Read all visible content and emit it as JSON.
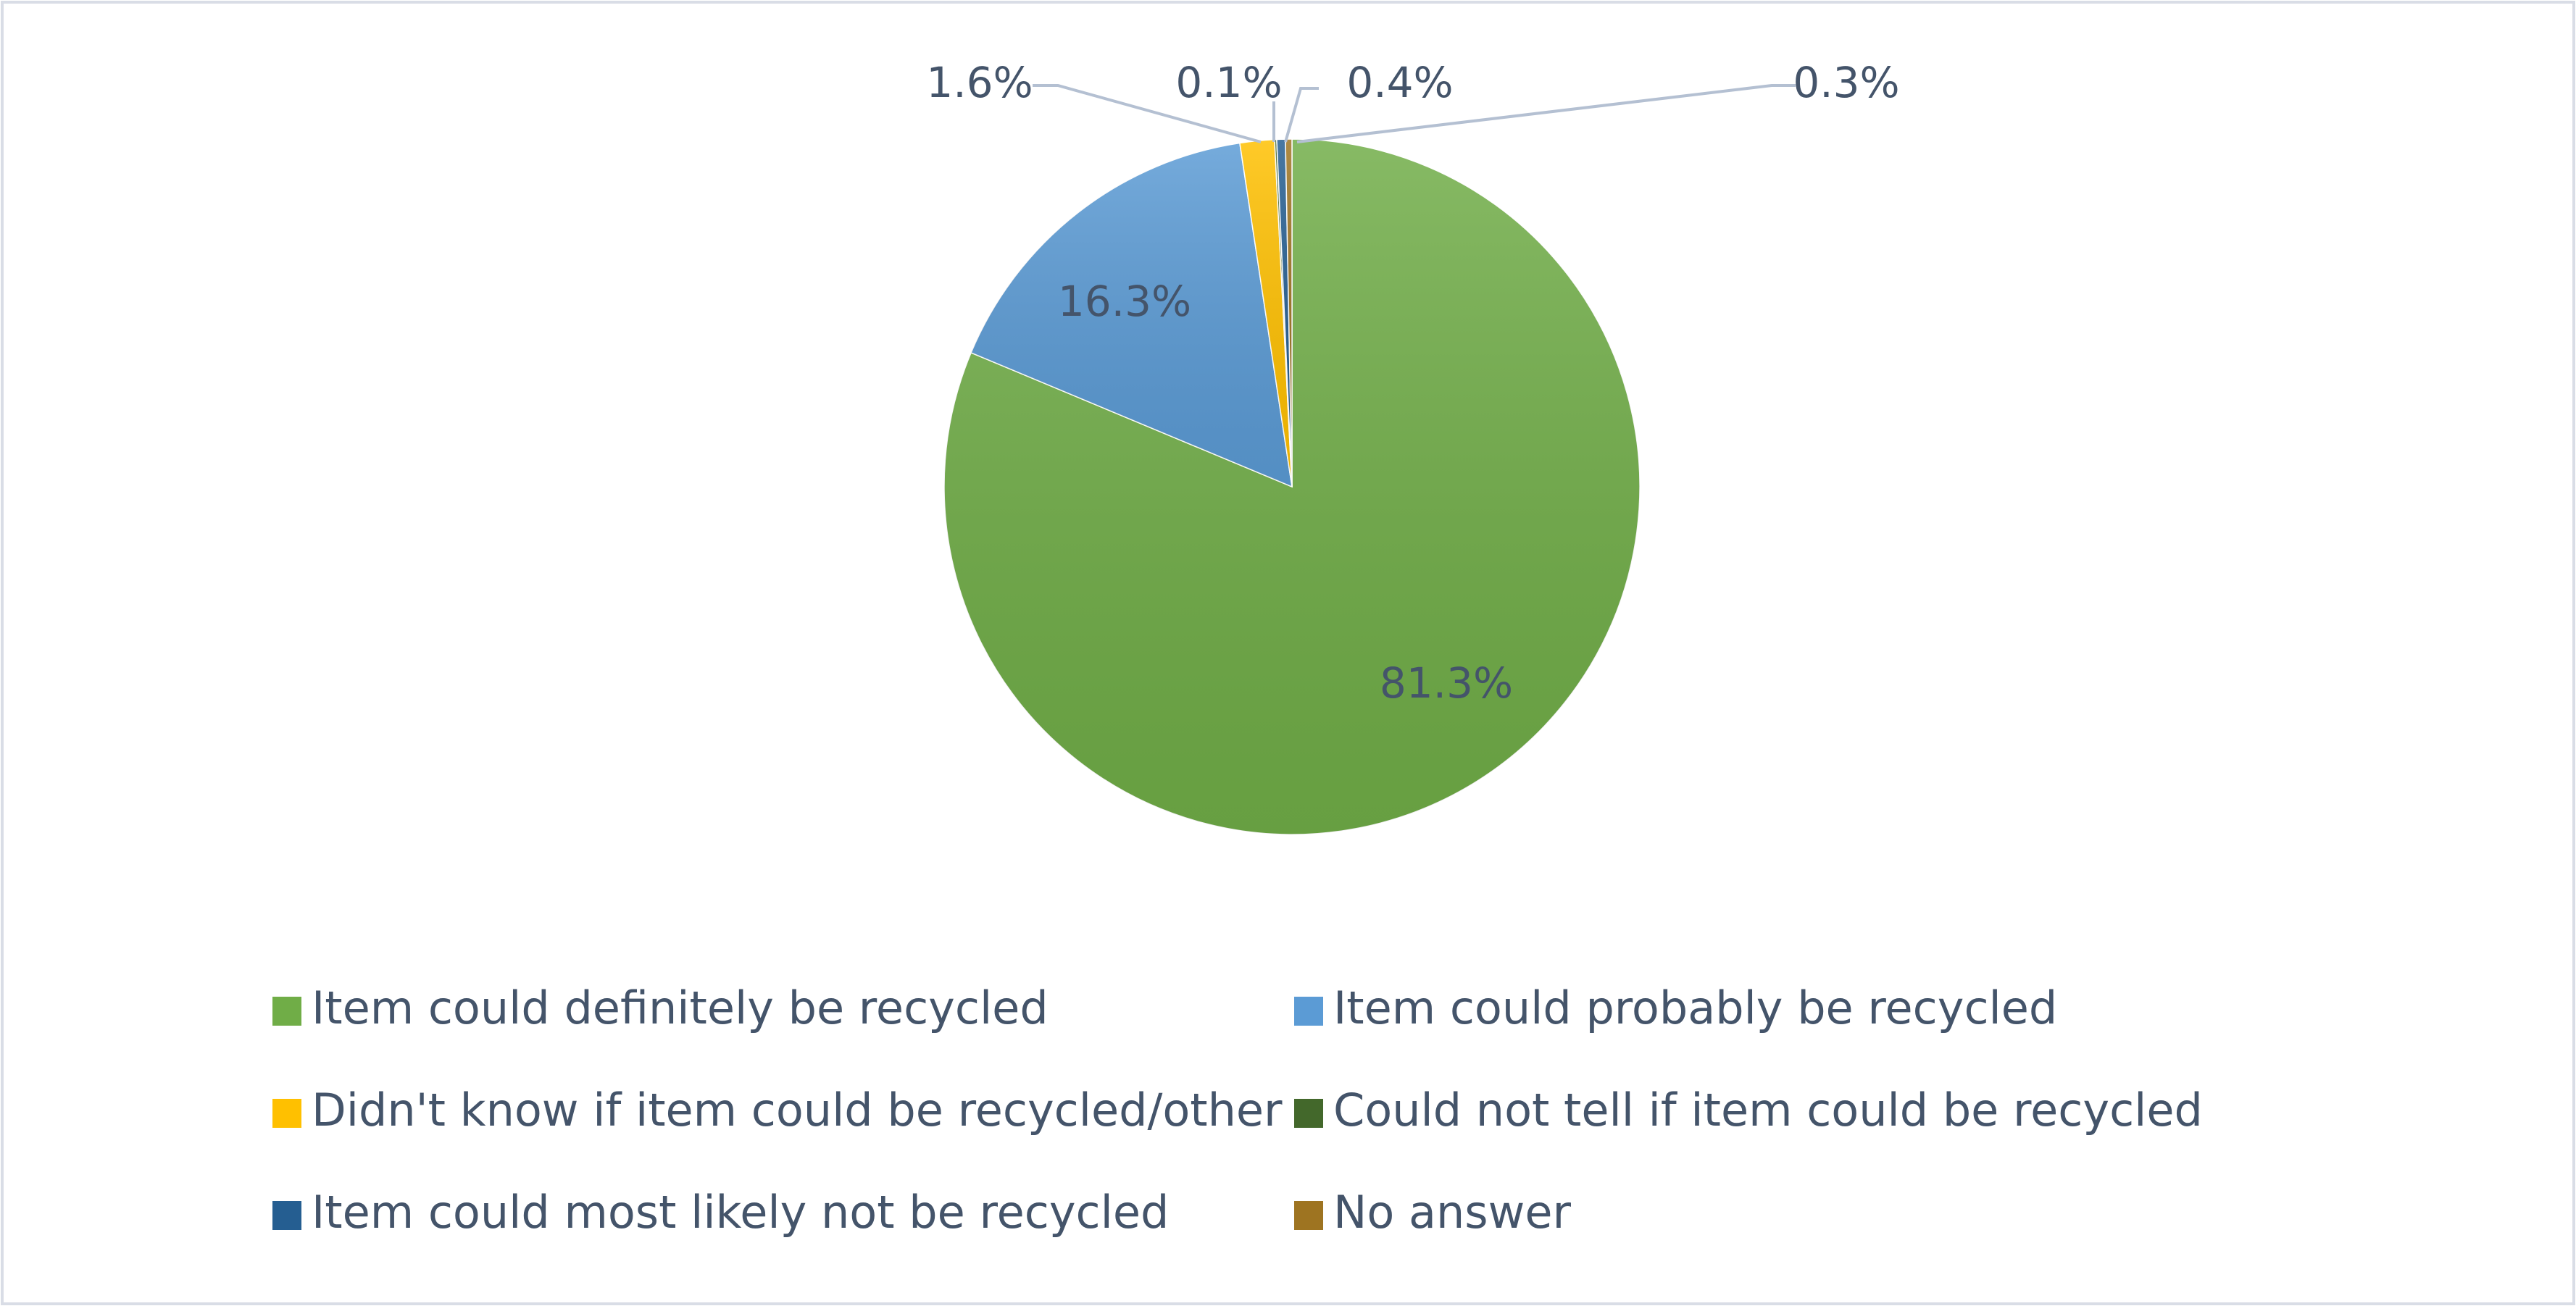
{
  "chart_data": {
    "type": "pie",
    "title": "",
    "start_angle_deg": 0,
    "direction": "clockwise",
    "slices": [
      {
        "label": "Item could definitely be recycled",
        "value": 81.3,
        "display": "81.3%",
        "color": "#70ad47"
      },
      {
        "label": "Item could probably be recycled",
        "value": 16.3,
        "display": "16.3%",
        "color": "#5b9bd5"
      },
      {
        "label": "Didn't know if item could be recycled/other",
        "value": 1.6,
        "display": "1.6%",
        "color": "#ffc000"
      },
      {
        "label": "Could not tell if item could be recycled",
        "value": 0.1,
        "display": "0.1%",
        "color": "#43682b"
      },
      {
        "label": "Item could most likely not be recycled",
        "value": 0.4,
        "display": "0.4%",
        "color": "#255e91"
      },
      {
        "label": "No answer",
        "value": 0.3,
        "display": "0.3%",
        "color": "#9e7421"
      }
    ],
    "legend": {
      "placement": "bottom",
      "columns": 2,
      "entries": [
        "Item could definitely be recycled",
        "Item could probably be recycled",
        "Didn't know if item could be recycled/other",
        "Could not tell if item could be recycled",
        "Item could most likely not be recycled",
        "No answer"
      ]
    },
    "label_color": "#44546a",
    "leader_line_color": "#b4c0d2",
    "frame_border_color": "#d9dde6"
  }
}
